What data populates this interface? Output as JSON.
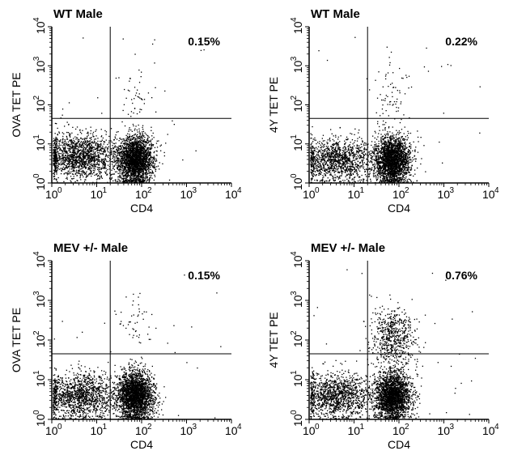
{
  "chart_data": [
    {
      "type": "scatter",
      "title": "WT Male",
      "xlabel": "CD4",
      "ylabel": "OVA TET PE",
      "xscale": "log",
      "yscale": "log",
      "xlim": [
        1,
        10000
      ],
      "ylim": [
        1,
        10000
      ],
      "quadrant_gates": {
        "x": 20,
        "y": 45
      },
      "annotation": "0.15%",
      "tick_labels": [
        "10",
        "10",
        "10",
        "10",
        "10"
      ],
      "tick_exponents": [
        "0",
        "1",
        "2",
        "3",
        "4"
      ],
      "populations": [
        {
          "x_center": 4,
          "y_center": 5,
          "x_spread": 0.42,
          "y_spread": 0.28,
          "count": 1600
        },
        {
          "x_center": 70,
          "y_center": 4,
          "x_spread": 0.2,
          "y_spread": 0.3,
          "count": 2600
        },
        {
          "x_center": 70,
          "y_center": 150,
          "x_spread": 0.2,
          "y_spread": 0.35,
          "count": 45
        }
      ]
    },
    {
      "type": "scatter",
      "title": "WT Male",
      "xlabel": "CD4",
      "ylabel": "4Y TET PE",
      "xscale": "log",
      "yscale": "log",
      "xlim": [
        1,
        10000
      ],
      "ylim": [
        1,
        10000
      ],
      "quadrant_gates": {
        "x": 20,
        "y": 45
      },
      "annotation": "0.22%",
      "tick_labels": [
        "10",
        "10",
        "10",
        "10",
        "10"
      ],
      "tick_exponents": [
        "0",
        "1",
        "2",
        "3",
        "4"
      ],
      "populations": [
        {
          "x_center": 4,
          "y_center": 4,
          "x_spread": 0.4,
          "y_spread": 0.28,
          "count": 1300
        },
        {
          "x_center": 70,
          "y_center": 4,
          "x_spread": 0.2,
          "y_spread": 0.3,
          "count": 2400
        },
        {
          "x_center": 70,
          "y_center": 200,
          "x_spread": 0.22,
          "y_spread": 0.4,
          "count": 60
        }
      ]
    },
    {
      "type": "scatter",
      "title": "MEV +/- Male",
      "xlabel": "CD4",
      "ylabel": "OVA TET PE",
      "xscale": "log",
      "yscale": "log",
      "xlim": [
        1,
        10000
      ],
      "ylim": [
        1,
        10000
      ],
      "quadrant_gates": {
        "x": 20,
        "y": 45
      },
      "annotation": "0.15%",
      "tick_labels": [
        "10",
        "10",
        "10",
        "10",
        "10"
      ],
      "tick_exponents": [
        "0",
        "1",
        "2",
        "3",
        "4"
      ],
      "populations": [
        {
          "x_center": 4,
          "y_center": 4,
          "x_spread": 0.42,
          "y_spread": 0.28,
          "count": 1400
        },
        {
          "x_center": 70,
          "y_center": 4,
          "x_spread": 0.2,
          "y_spread": 0.3,
          "count": 2600
        },
        {
          "x_center": 70,
          "y_center": 200,
          "x_spread": 0.2,
          "y_spread": 0.4,
          "count": 45
        }
      ]
    },
    {
      "type": "scatter",
      "title": "MEV +/- Male",
      "xlabel": "CD4",
      "ylabel": "4Y TET PE",
      "xscale": "log",
      "yscale": "log",
      "xlim": [
        1,
        10000
      ],
      "ylim": [
        1,
        10000
      ],
      "quadrant_gates": {
        "x": 20,
        "y": 45
      },
      "annotation": "0.76%",
      "tick_labels": [
        "10",
        "10",
        "10",
        "10",
        "10"
      ],
      "tick_exponents": [
        "0",
        "1",
        "2",
        "3",
        "4"
      ],
      "populations": [
        {
          "x_center": 4,
          "y_center": 4,
          "x_spread": 0.4,
          "y_spread": 0.28,
          "count": 1300
        },
        {
          "x_center": 70,
          "y_center": 4,
          "x_spread": 0.2,
          "y_spread": 0.3,
          "count": 2400
        },
        {
          "x_center": 75,
          "y_center": 120,
          "x_spread": 0.24,
          "y_spread": 0.38,
          "count": 650
        }
      ]
    }
  ]
}
